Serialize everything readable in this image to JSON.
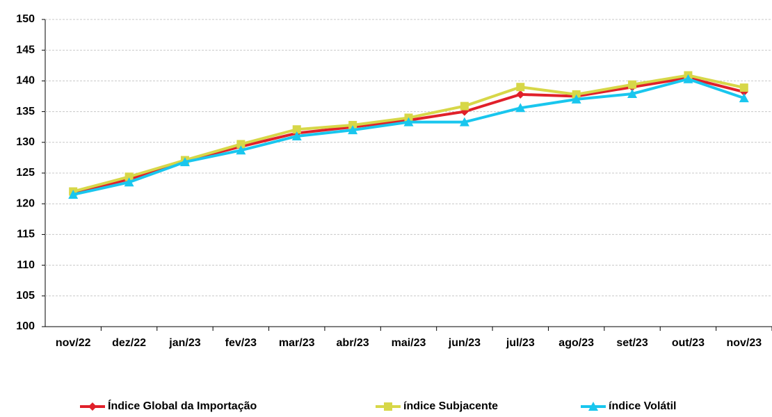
{
  "chart_data": {
    "type": "line",
    "categories": [
      "nov/22",
      "dez/22",
      "jan/23",
      "fev/23",
      "mar/23",
      "abr/23",
      "mai/23",
      "jun/23",
      "jul/23",
      "ago/23",
      "set/23",
      "out/23",
      "nov/23"
    ],
    "series": [
      {
        "name": "Índice Global da Importação",
        "color": "#e0202a",
        "marker": "diamond",
        "values": [
          121.8,
          124.0,
          127.0,
          129.3,
          131.5,
          132.5,
          133.6,
          135.0,
          137.8,
          137.5,
          139.0,
          140.5,
          138.2
        ]
      },
      {
        "name": "índice Subjacente",
        "color": "#d7d748",
        "marker": "square",
        "values": [
          122.0,
          124.4,
          127.1,
          129.7,
          132.1,
          132.8,
          134.0,
          135.9,
          139.0,
          137.8,
          139.4,
          140.9,
          138.9
        ]
      },
      {
        "name": "índice Volátil",
        "color": "#19c6ee",
        "marker": "triangle",
        "values": [
          121.5,
          123.5,
          126.8,
          128.7,
          131.0,
          132.0,
          133.3,
          133.3,
          135.6,
          137.0,
          137.9,
          140.3,
          137.2
        ]
      }
    ],
    "ylim": [
      100,
      150
    ],
    "yticks": [
      100,
      105,
      110,
      115,
      120,
      125,
      130,
      135,
      140,
      145,
      150
    ],
    "grid": true,
    "legend": "bottom"
  }
}
